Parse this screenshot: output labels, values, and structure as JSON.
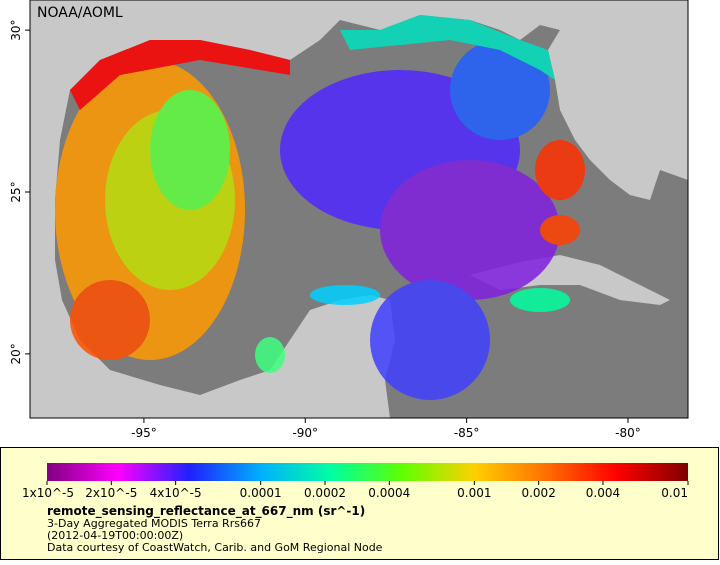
{
  "map": {
    "source": "NOAA/AOML",
    "xlim": [
      -98.53,
      -78.14
    ],
    "ylim": [
      18.02,
      30.93
    ],
    "xticks": [
      {
        "value": -95,
        "label": "-95°"
      },
      {
        "value": -90,
        "label": "-90°"
      },
      {
        "value": -85,
        "label": "-85°"
      },
      {
        "value": -80,
        "label": "-80°"
      }
    ],
    "yticks": [
      {
        "value": 20,
        "label": "20°"
      },
      {
        "value": 25,
        "label": "25°"
      },
      {
        "value": 30,
        "label": "30°"
      }
    ]
  },
  "colorbar": {
    "scale": "log",
    "range": [
      1e-05,
      0.01
    ],
    "colors": [
      "#80007f",
      "#ff00ff",
      "#2020ff",
      "#00b0ff",
      "#00ffa0",
      "#60ff00",
      "#ffd000",
      "#ff7000",
      "#ff0000",
      "#800000"
    ],
    "ticks": [
      {
        "value": 1e-05,
        "label": "1x10^-5"
      },
      {
        "value": 2e-05,
        "label": "2x10^-5"
      },
      {
        "value": 4e-05,
        "label": "4x10^-5"
      },
      0.0001,
      0.0002,
      0.0004,
      0.001,
      0.002,
      0.004,
      0.01
    ]
  },
  "legend": {
    "title": "remote_sensing_reflectance_at_667_nm (sr^-1)",
    "lines": [
      "3-Day Aggregated MODIS Terra Rrs667",
      "(2012-04-19T00:00:00Z)",
      "Data courtesy of CoastWatch, Carib. and GoM Regional Node"
    ]
  }
}
